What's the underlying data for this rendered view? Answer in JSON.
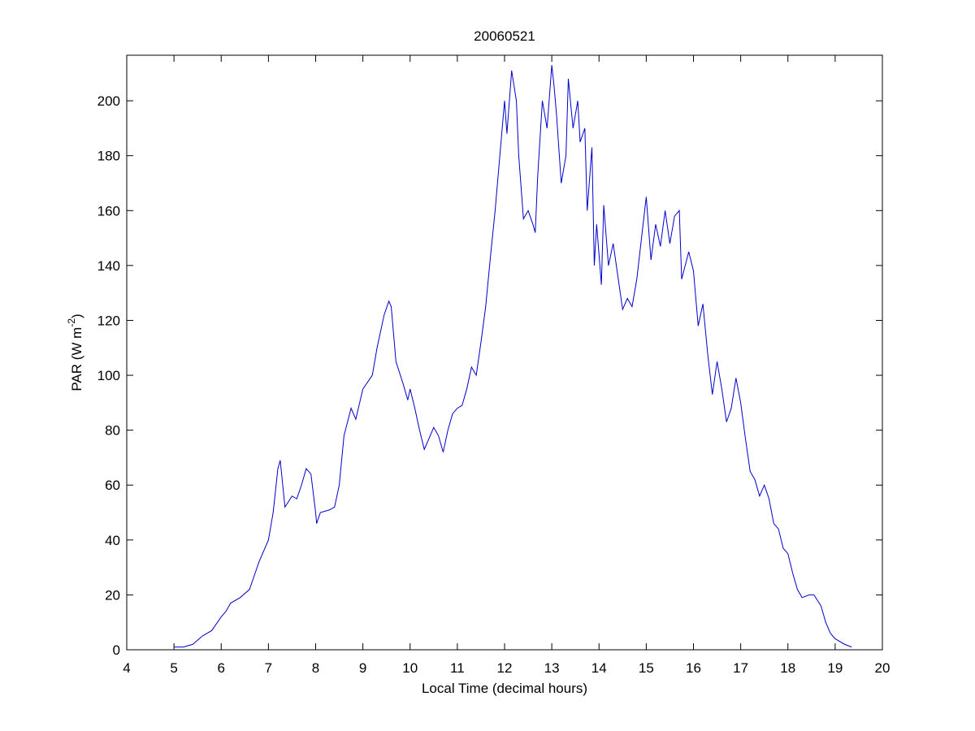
{
  "chart_data": {
    "type": "line",
    "title": "20060521",
    "x_label": "Local Time (decimal hours)",
    "y_label": {
      "text": "PAR (W m",
      "superscript": "-2",
      "suffix": ")"
    },
    "color": "#0000cc",
    "x": [
      5.0,
      5.2,
      5.4,
      5.6,
      5.8,
      6.0,
      6.1,
      6.2,
      6.4,
      6.6,
      6.7,
      6.8,
      7.0,
      7.1,
      7.2,
      7.25,
      7.35,
      7.5,
      7.6,
      7.7,
      7.8,
      7.9,
      8.0,
      8.02,
      8.1,
      8.3,
      8.4,
      8.5,
      8.6,
      8.75,
      8.85,
      9.0,
      9.2,
      9.3,
      9.45,
      9.55,
      9.6,
      9.7,
      9.85,
      9.95,
      10.0,
      10.1,
      10.2,
      10.3,
      10.4,
      10.5,
      10.6,
      10.7,
      10.8,
      10.9,
      11.0,
      11.1,
      11.2,
      11.3,
      11.4,
      11.5,
      11.6,
      11.7,
      11.8,
      11.9,
      12.0,
      12.05,
      12.15,
      12.25,
      12.3,
      12.4,
      12.5,
      12.6,
      12.65,
      12.7,
      12.8,
      12.9,
      13.0,
      13.05,
      13.1,
      13.2,
      13.3,
      13.35,
      13.45,
      13.55,
      13.6,
      13.7,
      13.75,
      13.85,
      13.9,
      13.95,
      14.05,
      14.1,
      14.2,
      14.3,
      14.5,
      14.6,
      14.7,
      14.8,
      14.9,
      15.0,
      15.1,
      15.2,
      15.3,
      15.4,
      15.5,
      15.6,
      15.7,
      15.75,
      15.9,
      16.0,
      16.1,
      16.2,
      16.3,
      16.4,
      16.5,
      16.6,
      16.7,
      16.8,
      16.9,
      17.0,
      17.1,
      17.2,
      17.3,
      17.4,
      17.5,
      17.6,
      17.7,
      17.8,
      17.9,
      18.0,
      18.1,
      18.2,
      18.3,
      18.45,
      18.55,
      18.7,
      18.8,
      18.9,
      19.0,
      19.2,
      19.35
    ],
    "values": [
      1,
      1,
      2,
      5,
      7,
      12,
      14,
      17,
      19,
      22,
      27,
      32,
      40,
      50,
      66,
      69,
      52,
      56,
      55,
      60,
      66,
      64,
      50,
      46,
      50,
      51,
      52,
      60,
      78,
      88,
      84,
      95,
      100,
      110,
      122,
      127,
      125,
      105,
      97,
      91,
      95,
      88,
      80,
      73,
      77,
      81,
      78,
      72,
      80,
      86,
      88,
      89,
      95,
      103,
      100,
      112,
      125,
      143,
      160,
      180,
      200,
      188,
      211,
      200,
      180,
      157,
      160,
      155,
      152,
      172,
      200,
      190,
      213,
      205,
      195,
      170,
      180,
      208,
      190,
      200,
      185,
      190,
      160,
      183,
      140,
      155,
      133,
      162,
      140,
      148,
      124,
      128,
      125,
      135,
      150,
      165,
      142,
      155,
      147,
      160,
      148,
      158,
      160,
      135,
      145,
      138,
      118,
      126,
      108,
      93,
      105,
      95,
      83,
      88,
      99,
      90,
      77,
      65,
      62,
      56,
      60,
      55,
      46,
      44,
      37,
      35,
      28,
      22,
      19,
      20,
      20,
      16,
      10,
      6,
      4,
      2,
      1
    ],
    "xlim": [
      4,
      20
    ],
    "xticks": [
      4,
      5,
      6,
      7,
      8,
      9,
      10,
      11,
      12,
      13,
      14,
      15,
      16,
      17,
      18,
      19,
      20
    ],
    "ylim": [
      0,
      216.6
    ],
    "yticks": [
      0,
      20,
      40,
      60,
      80,
      100,
      120,
      140,
      160,
      180,
      200
    ]
  }
}
